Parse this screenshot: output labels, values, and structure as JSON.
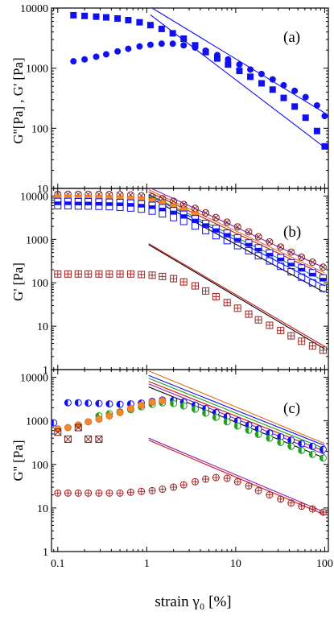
{
  "chart_data": [
    {
      "panel": "(a)",
      "type": "scatter",
      "xscale": "log",
      "yscale": "log",
      "xlim": [
        0.085,
        110
      ],
      "ylim": [
        10,
        10000
      ],
      "ylabel": "G''[Pa] ,  G' [Pa]",
      "yticks": [
        "10",
        "100",
        "1000",
        "10000"
      ],
      "series": [
        {
          "marker": "square",
          "fill": "filled",
          "color": "#1010f0",
          "x": [
            0.15,
            0.2,
            0.27,
            0.35,
            0.47,
            0.62,
            0.83,
            1.1,
            1.47,
            1.96,
            2.6,
            3.5,
            4.6,
            6.2,
            8.2,
            11,
            14.6,
            19.5,
            26,
            34.6,
            46,
            61,
            82,
            100
          ],
          "y": [
            7600,
            7400,
            7200,
            7000,
            6700,
            6300,
            5800,
            5200,
            4500,
            3800,
            3100,
            2400,
            1850,
            1450,
            1150,
            900,
            720,
            560,
            440,
            320,
            230,
            150,
            90,
            50
          ]
        },
        {
          "marker": "circle",
          "fill": "filled",
          "color": "#1010f0",
          "x": [
            0.15,
            0.2,
            0.27,
            0.35,
            0.47,
            0.62,
            0.83,
            1.1,
            1.47,
            1.96,
            2.6,
            3.5,
            4.6,
            6.2,
            8.2,
            11,
            14.6,
            19.5,
            26,
            34.6,
            46,
            61,
            82,
            100
          ],
          "y": [
            1300,
            1400,
            1550,
            1700,
            1900,
            2100,
            2300,
            2450,
            2550,
            2550,
            2400,
            2200,
            1950,
            1650,
            1400,
            1150,
            950,
            800,
            650,
            520,
            420,
            330,
            240,
            160
          ]
        },
        {
          "marker": "line",
          "color": "#1010f0",
          "x": [
            1.15,
            100
          ],
          "y": [
            10000,
            180
          ]
        },
        {
          "marker": "line",
          "color": "#1010f0",
          "x": [
            1.1,
            100
          ],
          "y": [
            7700,
            48
          ]
        }
      ]
    },
    {
      "panel": "(b)",
      "type": "scatter",
      "xscale": "log",
      "yscale": "log",
      "xlim": [
        0.085,
        110
      ],
      "ylim": [
        1,
        15000
      ],
      "ylabel": "G' [Pa]",
      "yticks": [
        "1",
        "10",
        "100",
        "1000",
        "10000"
      ],
      "series": [
        {
          "marker": "circle-x",
          "color": "#7a1a1a",
          "x": [
            0.1,
            0.13,
            0.17,
            0.22,
            0.29,
            0.38,
            0.5,
            0.66,
            0.87,
            1.15,
            1.5,
            2,
            2.6,
            3.5,
            4.6,
            6,
            8,
            10.5,
            14,
            18,
            24,
            32,
            42,
            55,
            73,
            96
          ],
          "y": [
            11000,
            11000,
            11000,
            11000,
            11000,
            10900,
            10800,
            10600,
            10200,
            9600,
            8700,
            7600,
            6400,
            5200,
            4100,
            3200,
            2500,
            1950,
            1500,
            1150,
            880,
            670,
            510,
            390,
            300,
            230
          ]
        },
        {
          "marker": "square",
          "fill": "orange",
          "color": "#e07020",
          "x": [
            0.1,
            0.13,
            0.17,
            0.22,
            0.29,
            0.38,
            0.5,
            0.66,
            0.87,
            1.15,
            1.5,
            2,
            2.6,
            3.5
          ],
          "y": [
            9000,
            9000,
            8900,
            8900,
            8800,
            8700,
            8600,
            8400,
            8000,
            7400,
            6600,
            5600,
            4600,
            3700
          ]
        },
        {
          "marker": "square-half",
          "color": "#1010f0",
          "x": [
            0.1,
            0.13,
            0.17,
            0.22,
            0.29,
            0.38,
            0.5,
            0.66,
            0.87,
            1.15,
            1.5,
            2,
            2.6,
            3.5,
            4.6,
            6,
            8,
            10.5,
            14,
            18,
            24,
            32,
            42,
            55,
            73,
            96
          ],
          "y": [
            7500,
            7500,
            7400,
            7400,
            7300,
            7200,
            7100,
            6900,
            6600,
            6100,
            5400,
            4600,
            3800,
            3000,
            2350,
            1800,
            1400,
            1080,
            830,
            640,
            490,
            380,
            290,
            220,
            170,
            130
          ]
        },
        {
          "marker": "square-open",
          "color": "#1010f0",
          "x": [
            0.1,
            0.13,
            0.17,
            0.22,
            0.29,
            0.38,
            0.5,
            0.66,
            0.87,
            1.15,
            1.5,
            2,
            2.6,
            3.5,
            4.6,
            6,
            8,
            10.5,
            14,
            18,
            24,
            32,
            42,
            55,
            73,
            96
          ],
          "y": [
            6000,
            6000,
            5900,
            5900,
            5800,
            5700,
            5500,
            5300,
            5000,
            4500,
            3900,
            3200,
            2600,
            2050,
            1600,
            1220,
            940,
            720,
            550,
            420,
            320,
            240,
            180,
            135,
            100,
            75
          ]
        },
        {
          "marker": "square-plus",
          "color": "#a02020",
          "x": [
            0.1,
            0.13,
            0.17,
            0.22,
            0.29,
            0.38,
            0.5,
            0.66,
            0.87,
            1.15,
            1.5,
            2,
            2.6,
            3.5,
            4.6,
            6,
            8,
            10.5,
            14,
            18,
            24,
            32,
            42,
            55,
            73,
            96
          ],
          "y": [
            160,
            160,
            160,
            160,
            160,
            160,
            160,
            160,
            155,
            150,
            140,
            125,
            105,
            85,
            65,
            48,
            35,
            26,
            19,
            14,
            10.5,
            8,
            6,
            4.5,
            3.5,
            2.8
          ]
        },
        {
          "marker": "line",
          "color": "#9020b0",
          "x": [
            1.05,
            100
          ],
          "y": [
            16000,
            220
          ]
        },
        {
          "marker": "line",
          "color": "#e07020",
          "x": [
            1.05,
            100
          ],
          "y": [
            14000,
            170
          ]
        },
        {
          "marker": "line",
          "color": "#d01010",
          "x": [
            1.05,
            100
          ],
          "y": [
            12500,
            150
          ]
        },
        {
          "marker": "line",
          "color": "#20a020",
          "x": [
            1.05,
            100
          ],
          "y": [
            11000,
            110
          ]
        },
        {
          "marker": "line",
          "color": "#1010f0",
          "x": [
            1.05,
            100
          ],
          "y": [
            10500,
            85
          ]
        },
        {
          "marker": "line",
          "color": "#000000",
          "x": [
            1.05,
            100
          ],
          "y": [
            9500,
            60
          ]
        },
        {
          "marker": "line",
          "color": "#d01010",
          "x": [
            1.05,
            100
          ],
          "y": [
            800,
            3.4
          ]
        },
        {
          "marker": "line",
          "color": "#000000",
          "x": [
            1.05,
            100
          ],
          "y": [
            760,
            3.0
          ]
        }
      ]
    },
    {
      "panel": "(c)",
      "type": "scatter",
      "xscale": "log",
      "yscale": "log",
      "xlim": [
        0.085,
        110
      ],
      "ylim": [
        1,
        15000
      ],
      "ylabel": "G'' [Pa]",
      "xlabel": "strain γ₀ [%]",
      "yticks": [
        "1",
        "10",
        "100",
        "1000",
        "10000"
      ],
      "xticks": [
        "0.1",
        "1",
        "10",
        "100"
      ],
      "series": [
        {
          "marker": "circle-half",
          "color": "#1010f0",
          "x": [
            0.09,
            0.13,
            0.17,
            0.22,
            0.29,
            0.38,
            0.5,
            0.66,
            0.87,
            1.15,
            1.5,
            2,
            2.6,
            3.5,
            4.6,
            6,
            8,
            10.5,
            14,
            18,
            24,
            32,
            42,
            55,
            73,
            96
          ],
          "y": [
            900,
            2600,
            2600,
            2550,
            2500,
            2450,
            2400,
            2450,
            2550,
            2800,
            3000,
            2950,
            2700,
            2300,
            1900,
            1550,
            1250,
            1000,
            800,
            650,
            520,
            430,
            360,
            300,
            260,
            220
          ]
        },
        {
          "marker": "circle-half",
          "color": "#20a020",
          "x": [
            0.29,
            0.38,
            0.5,
            0.66,
            0.87,
            1.15,
            1.5,
            2,
            2.6,
            3.5,
            4.6,
            6,
            8,
            10.5,
            14,
            18,
            24,
            32,
            42,
            55,
            73,
            96
          ],
          "y": [
            1300,
            1450,
            1600,
            1800,
            2100,
            2400,
            2600,
            2500,
            2200,
            1850,
            1500,
            1200,
            950,
            760,
            610,
            490,
            400,
            320,
            260,
            210,
            170,
            140
          ]
        },
        {
          "marker": "circle-fill",
          "color": "#e07020",
          "x": [
            0.1,
            0.13,
            0.17,
            0.22,
            0.29,
            0.38,
            0.5,
            0.66,
            0.87,
            1.15,
            1.5
          ],
          "y": [
            650,
            700,
            800,
            950,
            1100,
            1300,
            1550,
            1900,
            2300,
            2700,
            2900
          ]
        },
        {
          "marker": "square-x",
          "color": "#7a1a1a",
          "x": [
            0.1,
            0.13,
            0.17,
            0.22,
            0.29
          ],
          "y": [
            550,
            380,
            700,
            380,
            380
          ]
        },
        {
          "marker": "circle-plus",
          "color": "#a02020",
          "x": [
            0.1,
            0.13,
            0.17,
            0.22,
            0.29,
            0.38,
            0.5,
            0.66,
            0.87,
            1.15,
            1.5,
            2,
            2.6,
            3.5,
            4.6,
            6,
            8,
            10.5,
            14,
            18,
            24,
            32,
            42,
            55,
            73,
            96
          ],
          "y": [
            22,
            22,
            22,
            22,
            22,
            22,
            22,
            23,
            24,
            25,
            27,
            30,
            34,
            40,
            46,
            50,
            48,
            40,
            32,
            25,
            20,
            16,
            13,
            11,
            9.5,
            8
          ]
        },
        {
          "marker": "line",
          "color": "#e07020",
          "x": [
            1.05,
            100
          ],
          "y": [
            14000,
            300
          ]
        },
        {
          "marker": "line",
          "color": "#1010f0",
          "x": [
            1.05,
            100
          ],
          "y": [
            11000,
            270
          ]
        },
        {
          "marker": "line",
          "color": "#20a020",
          "x": [
            1.05,
            100
          ],
          "y": [
            9500,
            230
          ]
        },
        {
          "marker": "line",
          "color": "#d01010",
          "x": [
            1.05,
            100
          ],
          "y": [
            8000,
            200
          ]
        },
        {
          "marker": "line",
          "color": "#9020b0",
          "x": [
            1.05,
            100
          ],
          "y": [
            7000,
            170
          ]
        },
        {
          "marker": "line",
          "color": "#000000",
          "x": [
            1.05,
            100
          ],
          "y": [
            6000,
            140
          ]
        },
        {
          "marker": "line",
          "color": "#9020b0",
          "x": [
            1.05,
            100
          ],
          "y": [
            400,
            8
          ]
        },
        {
          "marker": "line",
          "color": "#d01010",
          "x": [
            1.05,
            100
          ],
          "y": [
            360,
            7
          ]
        }
      ]
    }
  ]
}
